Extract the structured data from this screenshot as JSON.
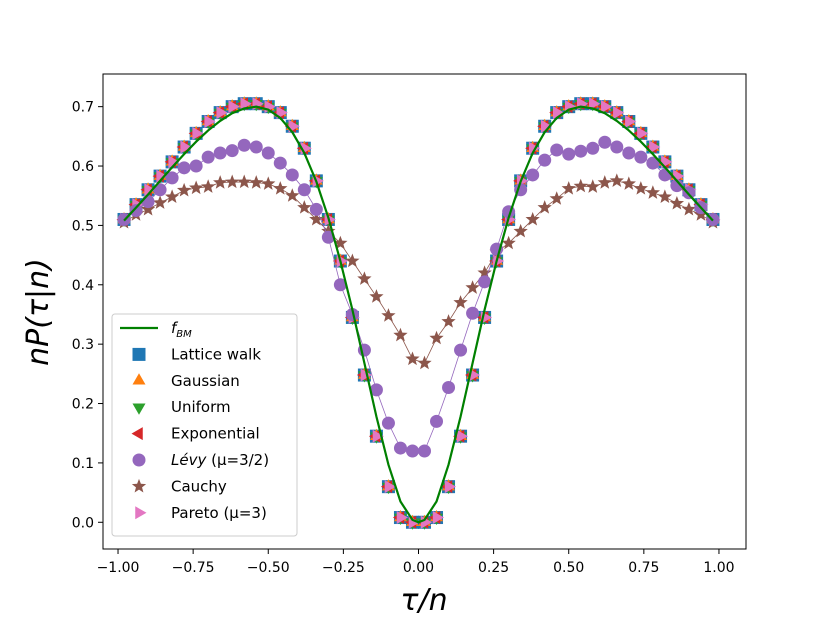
{
  "chart_data": {
    "type": "scatter",
    "title": "",
    "xlabel": "τ/n",
    "ylabel": "nP(τ|n)",
    "xlim": [
      -1.05,
      1.09
    ],
    "ylim": [
      -0.045,
      0.755
    ],
    "xticks": [
      -1.0,
      -0.75,
      -0.5,
      -0.25,
      0.0,
      0.25,
      0.5,
      0.75,
      1.0
    ],
    "xtick_labels": [
      "−1.00",
      "−0.75",
      "−0.50",
      "−0.25",
      "0.00",
      "0.25",
      "0.50",
      "0.75",
      "1.00"
    ],
    "yticks": [
      0.0,
      0.1,
      0.2,
      0.3,
      0.4,
      0.5,
      0.6,
      0.7
    ],
    "ytick_labels": [
      "0.0",
      "0.1",
      "0.2",
      "0.3",
      "0.4",
      "0.5",
      "0.6",
      "0.7"
    ],
    "legend_position": "lower-left",
    "x": [
      -0.98,
      -0.94,
      -0.9,
      -0.86,
      -0.82,
      -0.78,
      -0.74,
      -0.7,
      -0.66,
      -0.62,
      -0.58,
      -0.54,
      -0.5,
      -0.46,
      -0.42,
      -0.38,
      -0.34,
      -0.3,
      -0.26,
      -0.22,
      -0.18,
      -0.14,
      -0.1,
      -0.06,
      -0.02,
      0.02,
      0.06,
      0.1,
      0.14,
      0.18,
      0.22,
      0.26,
      0.3,
      0.34,
      0.38,
      0.42,
      0.46,
      0.5,
      0.54,
      0.58,
      0.62,
      0.66,
      0.7,
      0.74,
      0.78,
      0.82,
      0.86,
      0.9,
      0.94,
      0.98
    ],
    "series": [
      {
        "name": "f_BM",
        "label_main": "f",
        "label_sub": "BM",
        "kind": "line",
        "color": "#008000",
        "x": [
          -0.98,
          -0.94,
          -0.9,
          -0.86,
          -0.82,
          -0.78,
          -0.74,
          -0.7,
          -0.66,
          -0.62,
          -0.58,
          -0.54,
          -0.5,
          -0.46,
          -0.42,
          -0.38,
          -0.34,
          -0.3,
          -0.26,
          -0.22,
          -0.18,
          -0.14,
          -0.1,
          -0.06,
          -0.02,
          0.0,
          0.02,
          0.06,
          0.1,
          0.14,
          0.18,
          0.22,
          0.26,
          0.3,
          0.34,
          0.38,
          0.42,
          0.46,
          0.5,
          0.54,
          0.58,
          0.62,
          0.66,
          0.7,
          0.74,
          0.78,
          0.82,
          0.86,
          0.9,
          0.94,
          0.98
        ],
        "values": [
          0.508,
          0.53,
          0.552,
          0.575,
          0.598,
          0.62,
          0.641,
          0.66,
          0.676,
          0.689,
          0.697,
          0.7,
          0.695,
          0.681,
          0.657,
          0.622,
          0.574,
          0.513,
          0.44,
          0.358,
          0.268,
          0.178,
          0.097,
          0.035,
          0.004,
          0.0,
          0.004,
          0.035,
          0.097,
          0.178,
          0.268,
          0.358,
          0.44,
          0.513,
          0.574,
          0.622,
          0.657,
          0.681,
          0.695,
          0.7,
          0.697,
          0.689,
          0.676,
          0.66,
          0.641,
          0.62,
          0.598,
          0.575,
          0.552,
          0.53,
          0.508
        ]
      },
      {
        "name": "Lattice walk",
        "marker": "square",
        "color": "#1f77b4",
        "values": [
          0.51,
          0.535,
          0.56,
          0.583,
          0.607,
          0.632,
          0.655,
          0.675,
          0.69,
          0.7,
          0.705,
          0.705,
          0.7,
          0.69,
          0.667,
          0.63,
          0.575,
          0.51,
          0.44,
          0.345,
          0.248,
          0.145,
          0.06,
          0.008,
          0.0,
          0.0,
          0.008,
          0.06,
          0.145,
          0.248,
          0.345,
          0.44,
          0.51,
          0.575,
          0.63,
          0.667,
          0.69,
          0.7,
          0.705,
          0.705,
          0.7,
          0.69,
          0.675,
          0.655,
          0.632,
          0.607,
          0.583,
          0.56,
          0.535,
          0.51
        ]
      },
      {
        "name": "Gaussian",
        "marker": "triangle-up",
        "color": "#ff7f0e",
        "values": [
          0.51,
          0.535,
          0.56,
          0.583,
          0.607,
          0.632,
          0.655,
          0.675,
          0.69,
          0.7,
          0.705,
          0.705,
          0.7,
          0.69,
          0.667,
          0.63,
          0.575,
          0.51,
          0.44,
          0.345,
          0.248,
          0.145,
          0.06,
          0.008,
          0.0,
          0.0,
          0.008,
          0.06,
          0.145,
          0.248,
          0.345,
          0.44,
          0.51,
          0.575,
          0.63,
          0.667,
          0.69,
          0.7,
          0.705,
          0.705,
          0.7,
          0.69,
          0.675,
          0.655,
          0.632,
          0.607,
          0.583,
          0.56,
          0.535,
          0.51
        ]
      },
      {
        "name": "Uniform",
        "marker": "triangle-down",
        "color": "#2ca02c",
        "values": [
          0.51,
          0.535,
          0.56,
          0.583,
          0.607,
          0.632,
          0.655,
          0.675,
          0.69,
          0.7,
          0.705,
          0.705,
          0.7,
          0.69,
          0.667,
          0.63,
          0.575,
          0.51,
          0.44,
          0.345,
          0.248,
          0.145,
          0.06,
          0.008,
          0.0,
          0.0,
          0.008,
          0.06,
          0.145,
          0.248,
          0.345,
          0.44,
          0.51,
          0.575,
          0.63,
          0.667,
          0.69,
          0.7,
          0.705,
          0.705,
          0.7,
          0.69,
          0.675,
          0.655,
          0.632,
          0.607,
          0.583,
          0.56,
          0.535,
          0.51
        ]
      },
      {
        "name": "Exponential",
        "marker": "triangle-left",
        "color": "#d62728",
        "values": [
          0.51,
          0.535,
          0.56,
          0.583,
          0.607,
          0.632,
          0.655,
          0.675,
          0.69,
          0.7,
          0.705,
          0.705,
          0.7,
          0.69,
          0.667,
          0.63,
          0.575,
          0.51,
          0.44,
          0.345,
          0.248,
          0.145,
          0.06,
          0.008,
          0.0,
          0.0,
          0.008,
          0.06,
          0.145,
          0.248,
          0.345,
          0.44,
          0.51,
          0.575,
          0.63,
          0.667,
          0.69,
          0.7,
          0.705,
          0.705,
          0.7,
          0.69,
          0.675,
          0.655,
          0.632,
          0.607,
          0.583,
          0.56,
          0.535,
          0.51
        ]
      },
      {
        "name": "Lévy (μ=3/2)",
        "label_main": "Lévy",
        "label_rest": " (μ=3/2)",
        "marker": "circle",
        "color": "#9467bd",
        "connect": true,
        "values": [
          0.51,
          0.525,
          0.54,
          0.56,
          0.58,
          0.597,
          0.6,
          0.615,
          0.622,
          0.626,
          0.635,
          0.632,
          0.622,
          0.605,
          0.585,
          0.56,
          0.527,
          0.48,
          0.4,
          0.35,
          0.29,
          0.223,
          0.167,
          0.125,
          0.12,
          0.12,
          0.17,
          0.227,
          0.29,
          0.352,
          0.405,
          0.46,
          0.523,
          0.56,
          0.585,
          0.61,
          0.627,
          0.62,
          0.625,
          0.63,
          0.64,
          0.632,
          0.622,
          0.615,
          0.605,
          0.585,
          0.567,
          0.555,
          0.53,
          0.51
        ]
      },
      {
        "name": "Cauchy",
        "marker": "star",
        "color": "#8c564b",
        "connect": true,
        "values": [
          0.505,
          0.518,
          0.527,
          0.538,
          0.548,
          0.559,
          0.563,
          0.565,
          0.572,
          0.573,
          0.573,
          0.572,
          0.57,
          0.562,
          0.55,
          0.53,
          0.51,
          0.49,
          0.47,
          0.44,
          0.41,
          0.38,
          0.348,
          0.315,
          0.275,
          0.268,
          0.31,
          0.338,
          0.37,
          0.395,
          0.42,
          0.455,
          0.47,
          0.49,
          0.51,
          0.53,
          0.545,
          0.562,
          0.566,
          0.565,
          0.572,
          0.575,
          0.57,
          0.562,
          0.555,
          0.548,
          0.537,
          0.527,
          0.518,
          0.505
        ]
      },
      {
        "name": "Pareto (μ=3)",
        "marker": "triangle-right",
        "color": "#e377c2",
        "values": [
          0.51,
          0.535,
          0.56,
          0.583,
          0.607,
          0.632,
          0.655,
          0.675,
          0.69,
          0.7,
          0.705,
          0.705,
          0.7,
          0.69,
          0.667,
          0.63,
          0.575,
          0.51,
          0.44,
          0.345,
          0.248,
          0.145,
          0.06,
          0.008,
          0.0,
          0.0,
          0.008,
          0.06,
          0.145,
          0.248,
          0.345,
          0.44,
          0.51,
          0.575,
          0.63,
          0.667,
          0.69,
          0.7,
          0.705,
          0.705,
          0.7,
          0.69,
          0.675,
          0.655,
          0.632,
          0.607,
          0.583,
          0.56,
          0.535,
          0.51
        ]
      }
    ]
  }
}
